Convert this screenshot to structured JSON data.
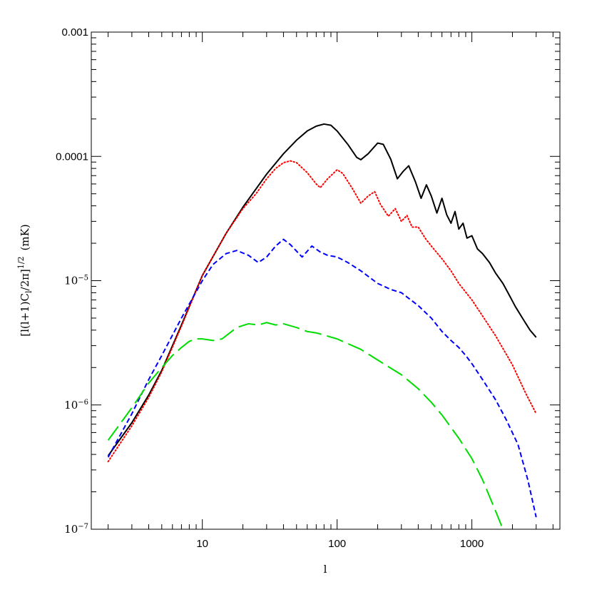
{
  "chart_data": {
    "type": "line",
    "xlabel": "l",
    "ylabel": "[l(l+1)C",
    "ylabel_sub": "l",
    "ylabel_mid": "/2π]",
    "ylabel_sup": "1/2",
    "ylabel_unit": "(mK)",
    "xscale": "log",
    "yscale": "log",
    "xlim": [
      1.5,
      4500
    ],
    "ylim": [
      1e-07,
      0.001
    ],
    "grid": false,
    "x_ticks": [
      {
        "value": 10,
        "label": "10"
      },
      {
        "value": 100,
        "label": "100"
      },
      {
        "value": 1000,
        "label": "1000"
      }
    ],
    "y_ticks": [
      {
        "value": 0.001,
        "label": "0.001"
      },
      {
        "value": 0.0001,
        "label": "0.0001"
      },
      {
        "value": 1e-05,
        "base": "10",
        "exp": "−5"
      },
      {
        "value": 1e-06,
        "base": "10",
        "exp": "−6"
      },
      {
        "value": 1e-07,
        "base": "10",
        "exp": "−7"
      }
    ],
    "series": [
      {
        "color": "#000000",
        "style": "solid",
        "points": [
          [
            2,
            3.9e-07
          ],
          [
            3,
            7.2e-07
          ],
          [
            4,
            1.2e-06
          ],
          [
            5,
            1.9e-06
          ],
          [
            7,
            4.4e-06
          ],
          [
            10,
            1.1e-05
          ],
          [
            15,
            2.4e-05
          ],
          [
            20,
            3.9e-05
          ],
          [
            30,
            7.2e-05
          ],
          [
            40,
            0.000105
          ],
          [
            50,
            0.000135
          ],
          [
            60,
            0.00016
          ],
          [
            70,
            0.000175
          ],
          [
            80,
            0.000182
          ],
          [
            90,
            0.000178
          ],
          [
            100,
            0.00016
          ],
          [
            120,
            0.000125
          ],
          [
            140,
            9.8e-05
          ],
          [
            150,
            9.4e-05
          ],
          [
            170,
            0.000105
          ],
          [
            200,
            0.000128
          ],
          [
            220,
            0.000125
          ],
          [
            250,
            9.5e-05
          ],
          [
            280,
            6.6e-05
          ],
          [
            310,
            7.6e-05
          ],
          [
            340,
            8.4e-05
          ],
          [
            380,
            6.3e-05
          ],
          [
            420,
            4.6e-05
          ],
          [
            460,
            5.9e-05
          ],
          [
            500,
            4.8e-05
          ],
          [
            550,
            3.5e-05
          ],
          [
            600,
            4.6e-05
          ],
          [
            650,
            3.4e-05
          ],
          [
            700,
            2.9e-05
          ],
          [
            750,
            3.6e-05
          ],
          [
            800,
            2.6e-05
          ],
          [
            860,
            2.9e-05
          ],
          [
            920,
            2.2e-05
          ],
          [
            1000,
            2.3e-05
          ],
          [
            1100,
            1.8e-05
          ],
          [
            1200,
            1.65e-05
          ],
          [
            1350,
            1.4e-05
          ],
          [
            1500,
            1.15e-05
          ],
          [
            1700,
            9.5e-06
          ],
          [
            1900,
            7.6e-06
          ],
          [
            2100,
            6.2e-06
          ],
          [
            2400,
            4.9e-06
          ],
          [
            2700,
            4e-06
          ],
          [
            3000,
            3.5e-06
          ]
        ]
      },
      {
        "color": "#ff0000",
        "style": "dotted",
        "points": [
          [
            2,
            3.5e-07
          ],
          [
            3,
            6.8e-07
          ],
          [
            4,
            1.15e-06
          ],
          [
            5,
            1.85e-06
          ],
          [
            7,
            4.3e-06
          ],
          [
            10,
            1.1e-05
          ],
          [
            15,
            2.4e-05
          ],
          [
            20,
            3.8e-05
          ],
          [
            25,
            5e-05
          ],
          [
            30,
            6.6e-05
          ],
          [
            35,
            8e-05
          ],
          [
            40,
            8.9e-05
          ],
          [
            45,
            9.2e-05
          ],
          [
            50,
            8.9e-05
          ],
          [
            60,
            7.4e-05
          ],
          [
            70,
            6e-05
          ],
          [
            75,
            5.6e-05
          ],
          [
            85,
            6.6e-05
          ],
          [
            100,
            7.8e-05
          ],
          [
            110,
            7.3e-05
          ],
          [
            130,
            5.5e-05
          ],
          [
            150,
            4.2e-05
          ],
          [
            170,
            4.8e-05
          ],
          [
            190,
            5.2e-05
          ],
          [
            210,
            4.1e-05
          ],
          [
            240,
            3.3e-05
          ],
          [
            270,
            3.8e-05
          ],
          [
            300,
            3e-05
          ],
          [
            330,
            3.35e-05
          ],
          [
            360,
            2.7e-05
          ],
          [
            400,
            2.7e-05
          ],
          [
            450,
            2.2e-05
          ],
          [
            500,
            1.9e-05
          ],
          [
            600,
            1.5e-05
          ],
          [
            700,
            1.2e-05
          ],
          [
            800,
            9.5e-06
          ],
          [
            1000,
            7e-06
          ],
          [
            1200,
            5.2e-06
          ],
          [
            1500,
            3.6e-06
          ],
          [
            2000,
            2.1e-06
          ],
          [
            2500,
            1.25e-06
          ],
          [
            3000,
            8.5e-07
          ]
        ]
      },
      {
        "color": "#0000ff",
        "style": "dashed",
        "points": [
          [
            2,
            3.8e-07
          ],
          [
            3,
            8.5e-07
          ],
          [
            4,
            1.6e-06
          ],
          [
            5,
            2.5e-06
          ],
          [
            7,
            5e-06
          ],
          [
            10,
            1e-05
          ],
          [
            12,
            1.35e-05
          ],
          [
            15,
            1.65e-05
          ],
          [
            18,
            1.75e-05
          ],
          [
            22,
            1.6e-05
          ],
          [
            26,
            1.4e-05
          ],
          [
            30,
            1.55e-05
          ],
          [
            35,
            1.9e-05
          ],
          [
            40,
            2.15e-05
          ],
          [
            45,
            1.95e-05
          ],
          [
            55,
            1.55e-05
          ],
          [
            65,
            1.9e-05
          ],
          [
            75,
            1.7e-05
          ],
          [
            85,
            1.6e-05
          ],
          [
            100,
            1.55e-05
          ],
          [
            120,
            1.4e-05
          ],
          [
            150,
            1.2e-05
          ],
          [
            200,
            9.5e-06
          ],
          [
            250,
            8.5e-06
          ],
          [
            300,
            8e-06
          ],
          [
            400,
            6.3e-06
          ],
          [
            500,
            5e-06
          ],
          [
            600,
            3.9e-06
          ],
          [
            700,
            3.3e-06
          ],
          [
            800,
            2.9e-06
          ],
          [
            900,
            2.5e-06
          ],
          [
            1000,
            2.15e-06
          ],
          [
            1200,
            1.6e-06
          ],
          [
            1500,
            1.1e-06
          ],
          [
            1800,
            7.6e-07
          ],
          [
            2200,
            4.8e-07
          ],
          [
            2600,
            2.5e-07
          ],
          [
            3000,
            1.25e-07
          ]
        ]
      },
      {
        "color": "#00dd00",
        "style": "long-dashed",
        "points": [
          [
            2,
            5.2e-07
          ],
          [
            3,
            9.5e-07
          ],
          [
            4,
            1.5e-06
          ],
          [
            5,
            2e-06
          ],
          [
            6,
            2.5e-06
          ],
          [
            7,
            2.9e-06
          ],
          [
            8,
            3.25e-06
          ],
          [
            9,
            3.4e-06
          ],
          [
            10,
            3.4e-06
          ],
          [
            12,
            3.3e-06
          ],
          [
            14,
            3.4e-06
          ],
          [
            16,
            3.8e-06
          ],
          [
            18,
            4.2e-06
          ],
          [
            22,
            4.5e-06
          ],
          [
            26,
            4.4e-06
          ],
          [
            30,
            4.6e-06
          ],
          [
            35,
            4.4e-06
          ],
          [
            40,
            4.5e-06
          ],
          [
            50,
            4.2e-06
          ],
          [
            60,
            3.9e-06
          ],
          [
            70,
            3.8e-06
          ],
          [
            80,
            3.65e-06
          ],
          [
            100,
            3.4e-06
          ],
          [
            150,
            2.8e-06
          ],
          [
            200,
            2.3e-06
          ],
          [
            300,
            1.75e-06
          ],
          [
            400,
            1.35e-06
          ],
          [
            500,
            1.05e-06
          ],
          [
            600,
            8.3e-07
          ],
          [
            800,
            5.4e-07
          ],
          [
            1000,
            3.7e-07
          ],
          [
            1200,
            2.5e-07
          ],
          [
            1500,
            1.4e-07
          ],
          [
            1700,
            1e-07
          ]
        ]
      }
    ]
  }
}
